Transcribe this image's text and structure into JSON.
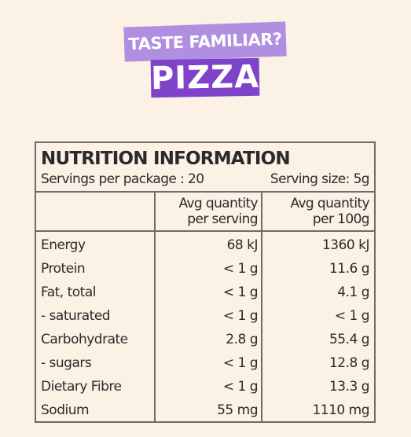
{
  "header": {
    "tagline": "TASTE FAMILIAR?",
    "flavour": "PIZZA"
  },
  "panel": {
    "title": "NUTRITION INFORMATION",
    "servings_per_package": "Servings per package : 20",
    "serving_size": "Serving size: 5g",
    "columns": [
      {
        "line1": "Avg quantity",
        "line2": "per serving"
      },
      {
        "line1": "Avg quantity",
        "line2": "per 100g"
      }
    ],
    "rows": [
      {
        "name": "Energy",
        "per_serving": "68 kJ",
        "per_100g": "1360 kJ"
      },
      {
        "name": "Protein",
        "per_serving": "< 1 g",
        "per_100g": "11.6 g"
      },
      {
        "name": "Fat, total",
        "per_serving": "< 1 g",
        "per_100g": "4.1 g"
      },
      {
        "name": "- saturated",
        "per_serving": "< 1 g",
        "per_100g": "< 1 g"
      },
      {
        "name": "Carbohydrate",
        "per_serving": "2.8 g",
        "per_100g": "55.4 g"
      },
      {
        "name": "- sugars",
        "per_serving": "< 1 g",
        "per_100g": "12.8 g"
      },
      {
        "name": "Dietary Fibre",
        "per_serving": "< 1 g",
        "per_100g": "13.3 g"
      },
      {
        "name": "Sodium",
        "per_serving": "55 mg",
        "per_100g": "1110 mg"
      }
    ]
  },
  "colors": {
    "background": "#fbf1e5",
    "tag_light": "#b08fe0",
    "tag_dark": "#7e43c9",
    "border": "#6b6b6b",
    "text": "#2a2a2a"
  }
}
